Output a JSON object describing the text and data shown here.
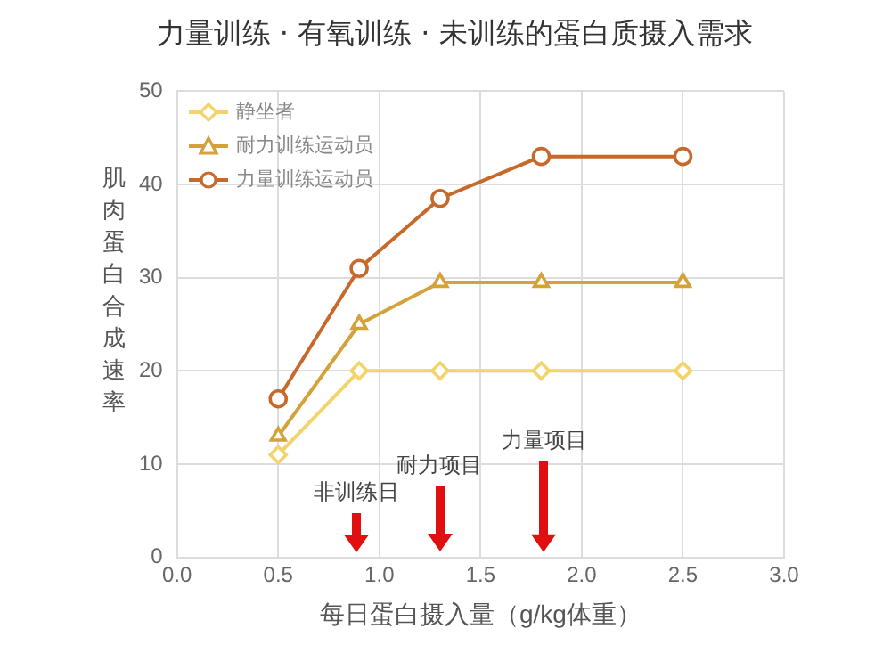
{
  "chart_data": {
    "type": "line",
    "title": "力量训练 · 有氧训练 · 未训练的蛋白质摄入需求",
    "xlabel": "每日蛋白摄入量（g/kg体重）",
    "ylabel": "肌肉蛋白合成速率",
    "xlim": [
      0,
      3
    ],
    "xticks": [
      {
        "value": 0,
        "label": "0.0"
      },
      0.5,
      {
        "value": 1,
        "label": "1.0"
      },
      1.5,
      {
        "value": 2,
        "label": "2.0"
      },
      2.5,
      {
        "value": 3,
        "label": "3.0"
      }
    ],
    "ylim": [
      0,
      50
    ],
    "yticks": [
      0,
      10,
      20,
      30,
      40,
      50
    ],
    "grid": true,
    "legend": "top left",
    "line_style": "solid",
    "x": [
      0.5,
      0.9,
      1.3,
      1.8,
      2.5
    ],
    "series": [
      {
        "name": "静坐者",
        "color": "#f2d46b",
        "marker": "diamond",
        "values": [
          11,
          20,
          20,
          20,
          20
        ]
      },
      {
        "name": "耐力训练运动员",
        "color": "#d4a23a",
        "marker": "triangle",
        "values": [
          13,
          25,
          29.5,
          29.5,
          29.5
        ]
      },
      {
        "name": "力量训练运动员",
        "color": "#c8692c",
        "marker": "circle",
        "values": [
          17,
          31,
          38.5,
          43,
          43
        ]
      }
    ],
    "annotations": [
      "非训练日",
      "耐力项目",
      "力量项目"
    ]
  }
}
